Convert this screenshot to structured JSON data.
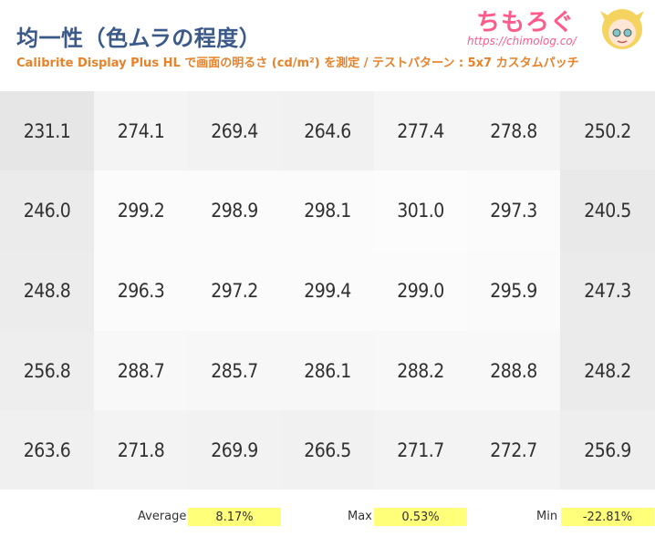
{
  "header": {
    "title": "均一性（色ムラの程度）",
    "subtitle": "Calibrite Display Plus HL で画面の明るさ (cd/m²) を測定 / テストパターン : 5x7 カスタムパッチ",
    "logo_text": "ちもろぐ",
    "logo_url": "https://chimolog.co/"
  },
  "chart_data": {
    "type": "heatmap",
    "title": "均一性（色ムラの程度）",
    "subtitle": "Calibrite Display Plus HL で画面の明るさ (cd/m²) を測定 / テストパターン : 5x7 カスタムパッチ",
    "unit": "cd/m²",
    "rows": 5,
    "cols": 7,
    "values": [
      [
        "231.1",
        "274.1",
        "269.4",
        "264.6",
        "277.4",
        "278.8",
        "250.2"
      ],
      [
        "246.0",
        "299.2",
        "298.9",
        "298.1",
        "301.0",
        "297.3",
        "240.5"
      ],
      [
        "248.8",
        "296.3",
        "297.2",
        "299.4",
        "299.0",
        "295.9",
        "247.3"
      ],
      [
        "256.8",
        "288.7",
        "285.7",
        "286.1",
        "288.2",
        "288.8",
        "248.2"
      ],
      [
        "263.6",
        "271.8",
        "269.9",
        "266.5",
        "271.7",
        "272.7",
        "256.9"
      ]
    ]
  },
  "stats": {
    "average_label": "Average",
    "average_value": "8.17%",
    "max_label": "Max",
    "max_value": "0.53%",
    "min_label": "Min",
    "min_value": "-22.81%"
  },
  "colors": {
    "title": "#3b5a8a",
    "subtitle": "#e8822a",
    "logo": "#ff5a8a",
    "stat_highlight": "#ffff7a"
  }
}
